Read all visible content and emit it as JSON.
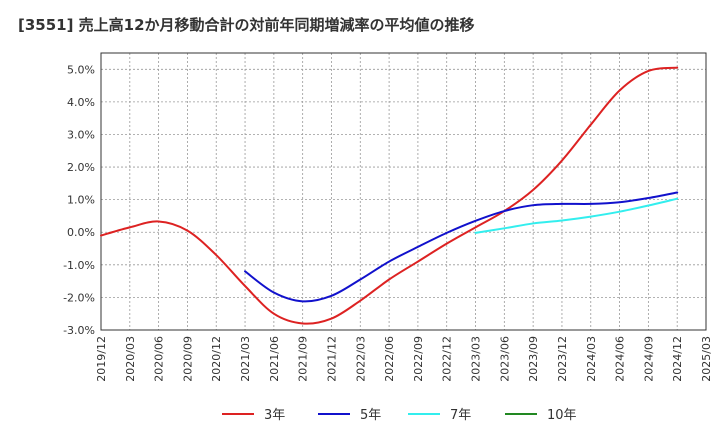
{
  "chart_data": {
    "type": "line",
    "title": "[3551]  売上高12か月移動合計の対前年同期増減率の平均値の推移",
    "xlabel": "",
    "ylabel": "",
    "ylim": [
      -3.0,
      5.5
    ],
    "yticks": [
      -3.0,
      -2.0,
      -1.0,
      0.0,
      1.0,
      2.0,
      3.0,
      4.0,
      5.0
    ],
    "ytick_labels": [
      "-3.0%",
      "-2.0%",
      "-1.0%",
      "0.0%",
      "1.0%",
      "2.0%",
      "3.0%",
      "4.0%",
      "5.0%"
    ],
    "xtick_labels": [
      "2019/12",
      "2020/03",
      "2020/06",
      "2020/09",
      "2020/12",
      "2021/03",
      "2021/06",
      "2021/09",
      "2021/12",
      "2022/03",
      "2022/06",
      "2022/09",
      "2022/12",
      "2023/03",
      "2023/06",
      "2023/09",
      "2023/12",
      "2024/03",
      "2024/06",
      "2024/09",
      "2024/12",
      "2025/03"
    ],
    "grid": true,
    "legend_position": "bottom",
    "series": [
      {
        "name": "3年",
        "color": "#dd2222",
        "points": [
          [
            "2019/12",
            -0.1
          ],
          [
            "2020/03",
            0.15
          ],
          [
            "2020/06",
            0.33
          ],
          [
            "2020/09",
            0.05
          ],
          [
            "2020/12",
            -0.7
          ],
          [
            "2021/03",
            -1.65
          ],
          [
            "2021/06",
            -2.5
          ],
          [
            "2021/09",
            -2.8
          ],
          [
            "2021/12",
            -2.65
          ],
          [
            "2022/03",
            -2.1
          ],
          [
            "2022/06",
            -1.45
          ],
          [
            "2022/09",
            -0.9
          ],
          [
            "2022/12",
            -0.35
          ],
          [
            "2023/03",
            0.15
          ],
          [
            "2023/06",
            0.65
          ],
          [
            "2023/09",
            1.3
          ],
          [
            "2023/12",
            2.2
          ],
          [
            "2024/03",
            3.3
          ],
          [
            "2024/06",
            4.35
          ],
          [
            "2024/09",
            4.95
          ],
          [
            "2024/12",
            5.05
          ]
        ]
      },
      {
        "name": "5年",
        "color": "#1111cc",
        "points": [
          [
            "2021/03",
            -1.2
          ],
          [
            "2021/06",
            -1.85
          ],
          [
            "2021/09",
            -2.12
          ],
          [
            "2021/12",
            -1.95
          ],
          [
            "2022/03",
            -1.45
          ],
          [
            "2022/06",
            -0.9
          ],
          [
            "2022/09",
            -0.45
          ],
          [
            "2022/12",
            -0.02
          ],
          [
            "2023/03",
            0.35
          ],
          [
            "2023/06",
            0.65
          ],
          [
            "2023/09",
            0.83
          ],
          [
            "2023/12",
            0.87
          ],
          [
            "2024/03",
            0.87
          ],
          [
            "2024/06",
            0.92
          ],
          [
            "2024/09",
            1.05
          ],
          [
            "2024/12",
            1.22
          ]
        ]
      },
      {
        "name": "7年",
        "color": "#33eeee",
        "points": [
          [
            "2023/03",
            -0.02
          ],
          [
            "2023/06",
            0.12
          ],
          [
            "2023/09",
            0.27
          ],
          [
            "2023/12",
            0.36
          ],
          [
            "2024/03",
            0.48
          ],
          [
            "2024/06",
            0.63
          ],
          [
            "2024/09",
            0.82
          ],
          [
            "2024/12",
            1.03
          ]
        ]
      },
      {
        "name": "10年",
        "color": "#228822",
        "points": []
      }
    ]
  }
}
